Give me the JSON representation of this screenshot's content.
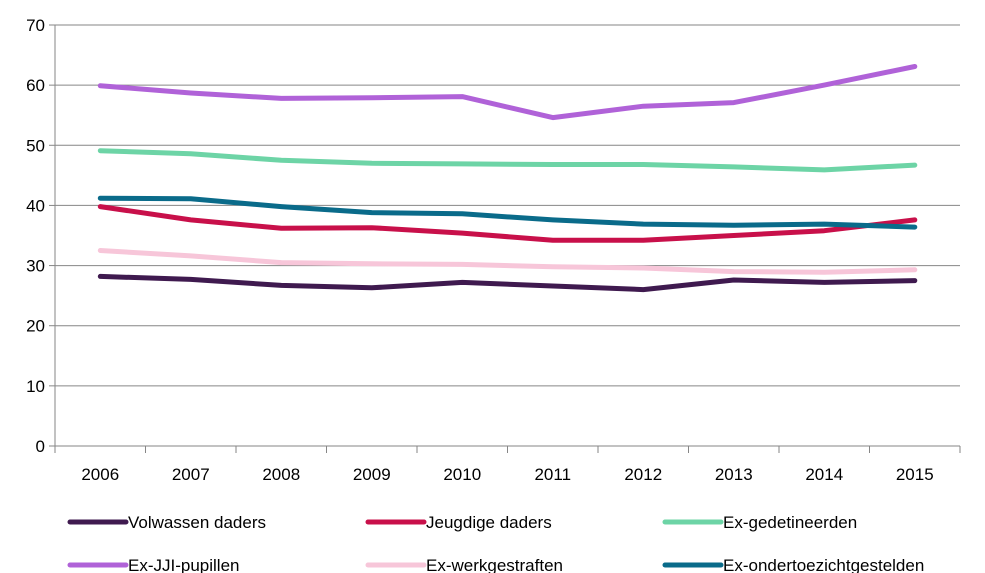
{
  "chart_data": {
    "type": "line",
    "title": "",
    "xlabel": "",
    "ylabel": "",
    "categories": [
      "2006",
      "2007",
      "2008",
      "2009",
      "2010",
      "2011",
      "2012",
      "2013",
      "2014",
      "2015"
    ],
    "ylim": [
      0,
      70
    ],
    "yticks": [
      0,
      10,
      20,
      30,
      40,
      50,
      60,
      70
    ],
    "grid": "horizontal",
    "legend_position": "bottom",
    "series": [
      {
        "name": "Volwassen daders",
        "color": "#3f1a4f",
        "values": [
          28.2,
          27.7,
          26.7,
          26.3,
          27.2,
          26.6,
          26.0,
          27.6,
          27.2,
          27.5
        ]
      },
      {
        "name": "Jeugdige daders",
        "color": "#c8104a",
        "values": [
          39.8,
          37.6,
          36.2,
          36.3,
          35.4,
          34.2,
          34.2,
          35.0,
          35.8,
          37.6
        ]
      },
      {
        "name": "Ex-gedetineerden",
        "color": "#6dd4a6",
        "values": [
          49.1,
          48.6,
          47.5,
          47.0,
          46.9,
          46.8,
          46.8,
          46.4,
          45.9,
          46.7
        ]
      },
      {
        "name": "Ex-JJI-pupillen",
        "color": "#b062d8",
        "values": [
          59.9,
          58.7,
          57.8,
          57.9,
          58.1,
          54.6,
          56.5,
          57.1,
          60.0,
          63.1
        ]
      },
      {
        "name": "Ex-werkgestraften",
        "color": "#f7c6d9",
        "values": [
          32.5,
          31.6,
          30.5,
          30.3,
          30.2,
          29.8,
          29.6,
          29.0,
          28.9,
          29.3
        ]
      },
      {
        "name": "Ex-ondertoezichtgestelden",
        "color": "#0a6b8a",
        "values": [
          41.2,
          41.1,
          39.8,
          38.8,
          38.6,
          37.6,
          36.9,
          36.7,
          36.9,
          36.4
        ]
      }
    ]
  }
}
